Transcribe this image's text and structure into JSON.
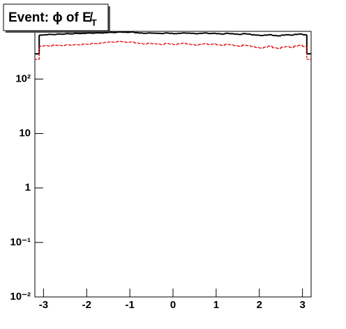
{
  "chart_data": {
    "type": "step-histogram",
    "title": "Event: ϕ of E̸",
    "title_subscript": "T",
    "bins": [
      -3.2,
      -3.1,
      -3.0,
      -2.9,
      -2.8,
      -2.7,
      -2.6,
      -2.5,
      -2.4,
      -2.3,
      -2.2,
      -2.1,
      -2.0,
      -1.9,
      -1.8,
      -1.7,
      -1.6,
      -1.5,
      -1.4,
      -1.3,
      -1.2,
      -1.1,
      -1.0,
      -0.9,
      -0.8,
      -0.7,
      -0.6,
      -0.5,
      -0.4,
      -0.3,
      -0.2,
      -0.1,
      0.0,
      0.1,
      0.2,
      0.3,
      0.4,
      0.5,
      0.6,
      0.7,
      0.8,
      0.9,
      1.0,
      1.1,
      1.2,
      1.3,
      1.4,
      1.5,
      1.6,
      1.7,
      1.8,
      1.9,
      2.0,
      2.1,
      2.2,
      2.3,
      2.4,
      2.5,
      2.6,
      2.7,
      2.8,
      2.9,
      3.0,
      3.1,
      3.2
    ],
    "series": [
      {
        "color": "#000000",
        "dashed": false,
        "values": [
          290,
          640,
          650,
          660,
          655,
          670,
          665,
          680,
          675,
          690,
          685,
          690,
          700,
          695,
          705,
          700,
          710,
          720,
          715,
          730,
          725,
          720,
          730,
          710,
          700,
          690,
          700,
          695,
          690,
          685,
          700,
          690,
          680,
          690,
          700,
          695,
          690,
          680,
          690,
          700,
          685,
          690,
          680,
          670,
          690,
          680,
          670,
          660,
          680,
          670,
          650,
          640,
          630,
          640,
          650,
          630,
          620,
          640,
          650,
          640,
          660,
          670,
          650,
          290
        ]
      },
      {
        "color": "#e00000",
        "dashed": true,
        "values": [
          230,
          400,
          410,
          405,
          420,
          415,
          410,
          425,
          420,
          430,
          425,
          440,
          435,
          450,
          445,
          460,
          470,
          480,
          475,
          490,
          485,
          470,
          480,
          460,
          450,
          440,
          455,
          445,
          440,
          430,
          450,
          440,
          430,
          445,
          455,
          440,
          430,
          420,
          435,
          445,
          430,
          440,
          425,
          415,
          435,
          425,
          410,
          400,
          420,
          410,
          395,
          380,
          370,
          385,
          400,
          375,
          365,
          385,
          395,
          380,
          405,
          415,
          395,
          230
        ]
      }
    ],
    "xlim": [
      -3.2,
      3.2
    ],
    "xticks": [
      -3,
      -2,
      -1,
      0,
      1,
      2,
      3
    ],
    "ylim": [
      0.01,
      750
    ],
    "log_y": true,
    "yticks": [
      {
        "value": 0.01,
        "label": "10⁻²"
      },
      {
        "value": 0.1,
        "label": "10⁻¹"
      },
      1,
      10,
      {
        "value": 100,
        "label": "10²"
      }
    ]
  }
}
